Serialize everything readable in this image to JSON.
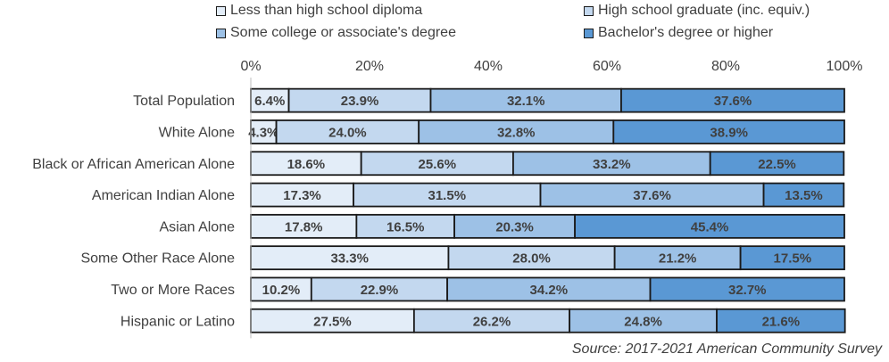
{
  "chart_data": {
    "type": "bar",
    "orientation": "horizontal",
    "stacked": "percent",
    "title": "",
    "xlabel": "",
    "ylabel": "",
    "xlim": [
      0,
      100
    ],
    "tick_labels": [
      "0%",
      "20%",
      "40%",
      "60%",
      "80%",
      "100%"
    ],
    "categories": [
      "Total Population",
      "White Alone",
      "Black or African American Alone",
      "American Indian Alone",
      "Asian Alone",
      "Some Other Race Alone",
      "Two or More Races",
      "Hispanic or Latino"
    ],
    "series": [
      {
        "name": "Less than high school diploma",
        "color": "#e3edf8",
        "values": [
          6.4,
          4.3,
          18.6,
          17.3,
          17.8,
          33.3,
          10.2,
          27.5
        ],
        "labels": [
          "6.4%",
          "4.3%",
          "18.6%",
          "17.3%",
          "17.8%",
          "33.3%",
          "10.2%",
          "27.5%"
        ]
      },
      {
        "name": "High school graduate (inc. equiv.)",
        "color": "#c3d8ef",
        "values": [
          23.9,
          24.0,
          25.6,
          31.5,
          16.5,
          28.0,
          22.9,
          26.2
        ],
        "labels": [
          "23.9%",
          "24.0%",
          "25.6%",
          "31.5%",
          "16.5%",
          "28.0%",
          "22.9%",
          "26.2%"
        ]
      },
      {
        "name": "Some college or associate's degree",
        "color": "#9dc1e6",
        "values": [
          32.1,
          32.8,
          33.2,
          37.6,
          20.3,
          21.2,
          34.2,
          24.8
        ],
        "labels": [
          "32.1%",
          "32.8%",
          "33.2%",
          "37.6%",
          "20.3%",
          "21.2%",
          "34.2%",
          "24.8%"
        ]
      },
      {
        "name": "Bachelor's degree or higher",
        "color": "#5a98d4",
        "values": [
          37.6,
          38.9,
          22.5,
          13.5,
          45.4,
          17.5,
          32.7,
          21.6
        ],
        "labels": [
          "37.6%",
          "38.9%",
          "22.5%",
          "13.5%",
          "45.4%",
          "17.5%",
          "32.7%",
          "21.6%"
        ]
      }
    ],
    "legend_position": "top",
    "grid": false
  },
  "source": "Source: 2017-2021 American Community Survey"
}
